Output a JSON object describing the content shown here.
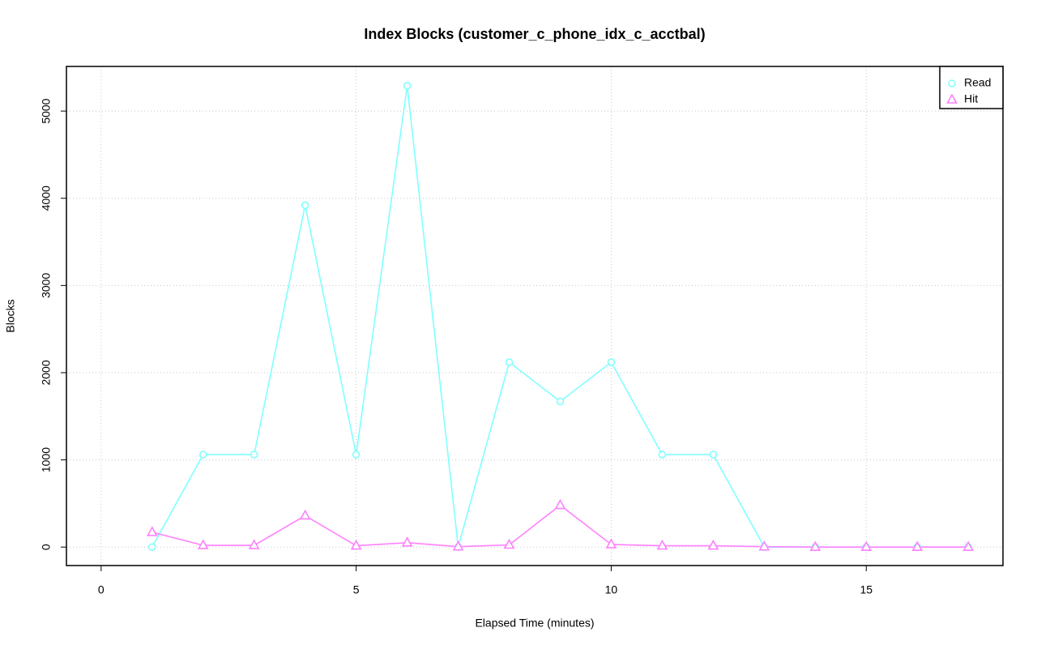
{
  "chart_data": {
    "type": "line",
    "title": "Index Blocks (customer_c_phone_idx_c_acctbal)",
    "x_label": "Elapsed Time (minutes)",
    "y_label": "Blocks",
    "x": [
      1,
      2,
      3,
      4,
      5,
      6,
      7,
      8,
      9,
      10,
      11,
      12,
      13,
      14,
      15,
      16,
      17
    ],
    "series": [
      {
        "name": "Read",
        "color": "#80ffff",
        "marker": "circle",
        "values": [
          0,
          1060,
          1060,
          3920,
          1060,
          5290,
          0,
          2120,
          1670,
          2120,
          1060,
          1060,
          0,
          0,
          0,
          0,
          0
        ]
      },
      {
        "name": "Hit",
        "color": "#ff80ff",
        "marker": "triangle",
        "values": [
          170,
          20,
          20,
          360,
          15,
          50,
          5,
          25,
          480,
          30,
          15,
          15,
          5,
          0,
          0,
          0,
          0
        ]
      }
    ],
    "xlim": [
      -0.68,
      17.68
    ],
    "xticks": [
      0,
      5,
      10,
      15
    ],
    "ylim": [
      -212,
      5512
    ],
    "yticks": [
      0,
      1000,
      2000,
      3000,
      4000,
      5000
    ],
    "grid": true,
    "legend": "topright"
  }
}
